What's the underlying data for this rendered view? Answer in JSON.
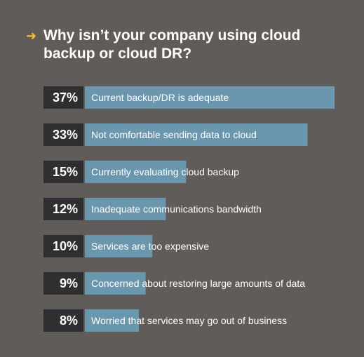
{
  "title": "Why isn’t your company using cloud backup or cloud DR?",
  "title_icon": "arrow-right-icon",
  "colors": {
    "background": "#5f5c59",
    "bar": "#6a96ae",
    "percent_box": "#2f2f31",
    "arrow": "#f2c230",
    "text": "#ffffff"
  },
  "chart_data": {
    "type": "bar",
    "orientation": "horizontal",
    "title": "Why isn’t your company using cloud backup or cloud DR?",
    "xlabel": "",
    "ylabel": "",
    "categories": [
      "Current backup/DR is adequate",
      "Not comfortable sending data to cloud",
      "Currently evaluating cloud backup",
      "Inadequate communications bandwidth",
      "Services are too expensive",
      "Concerned about restoring large amounts of data",
      "Worried that services may go out of business"
    ],
    "values": [
      37,
      33,
      15,
      12,
      10,
      9,
      8
    ],
    "value_labels": [
      "37%",
      "33%",
      "15%",
      "12%",
      "10%",
      "9%",
      "8%"
    ],
    "xlim": [
      0,
      37
    ],
    "unit": "%",
    "grid": false,
    "legend": "none"
  }
}
